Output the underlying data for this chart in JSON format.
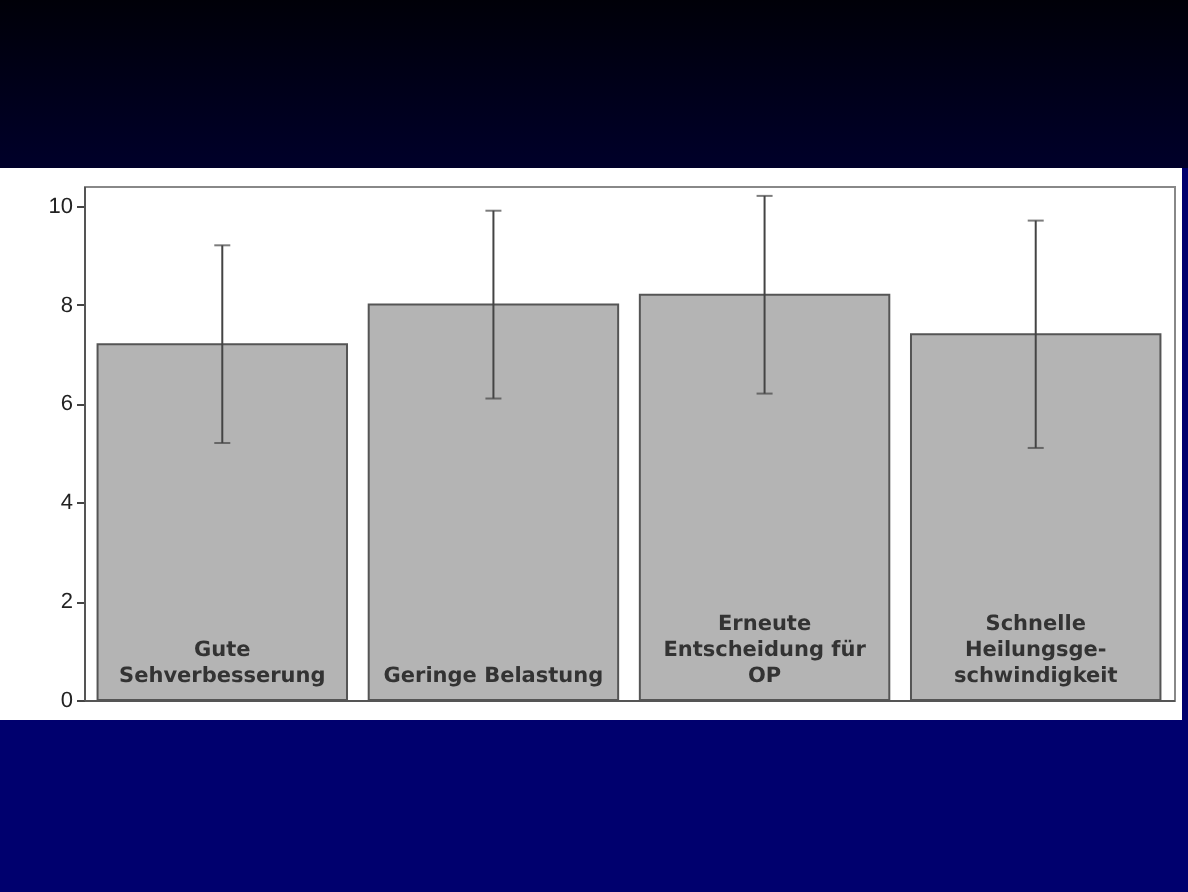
{
  "chart_data": {
    "type": "bar",
    "categories": [
      "Gute\nSehverbesserung",
      "Geringe Belastung",
      "Erneute\nEntscheidung für\nOP",
      "Schnelle\nHeilungsge-\nschwindigkeit"
    ],
    "values": [
      7.2,
      8.0,
      8.2,
      7.4
    ],
    "errors": [
      [
        5.2,
        9.2
      ],
      [
        6.1,
        9.9
      ],
      [
        6.2,
        10.2
      ],
      [
        5.1,
        9.7
      ]
    ],
    "color": "#b4b4b4",
    "ylim": [
      0,
      10.4
    ],
    "yticks": [
      0,
      2,
      4,
      6,
      8,
      10
    ],
    "grid": false
  }
}
